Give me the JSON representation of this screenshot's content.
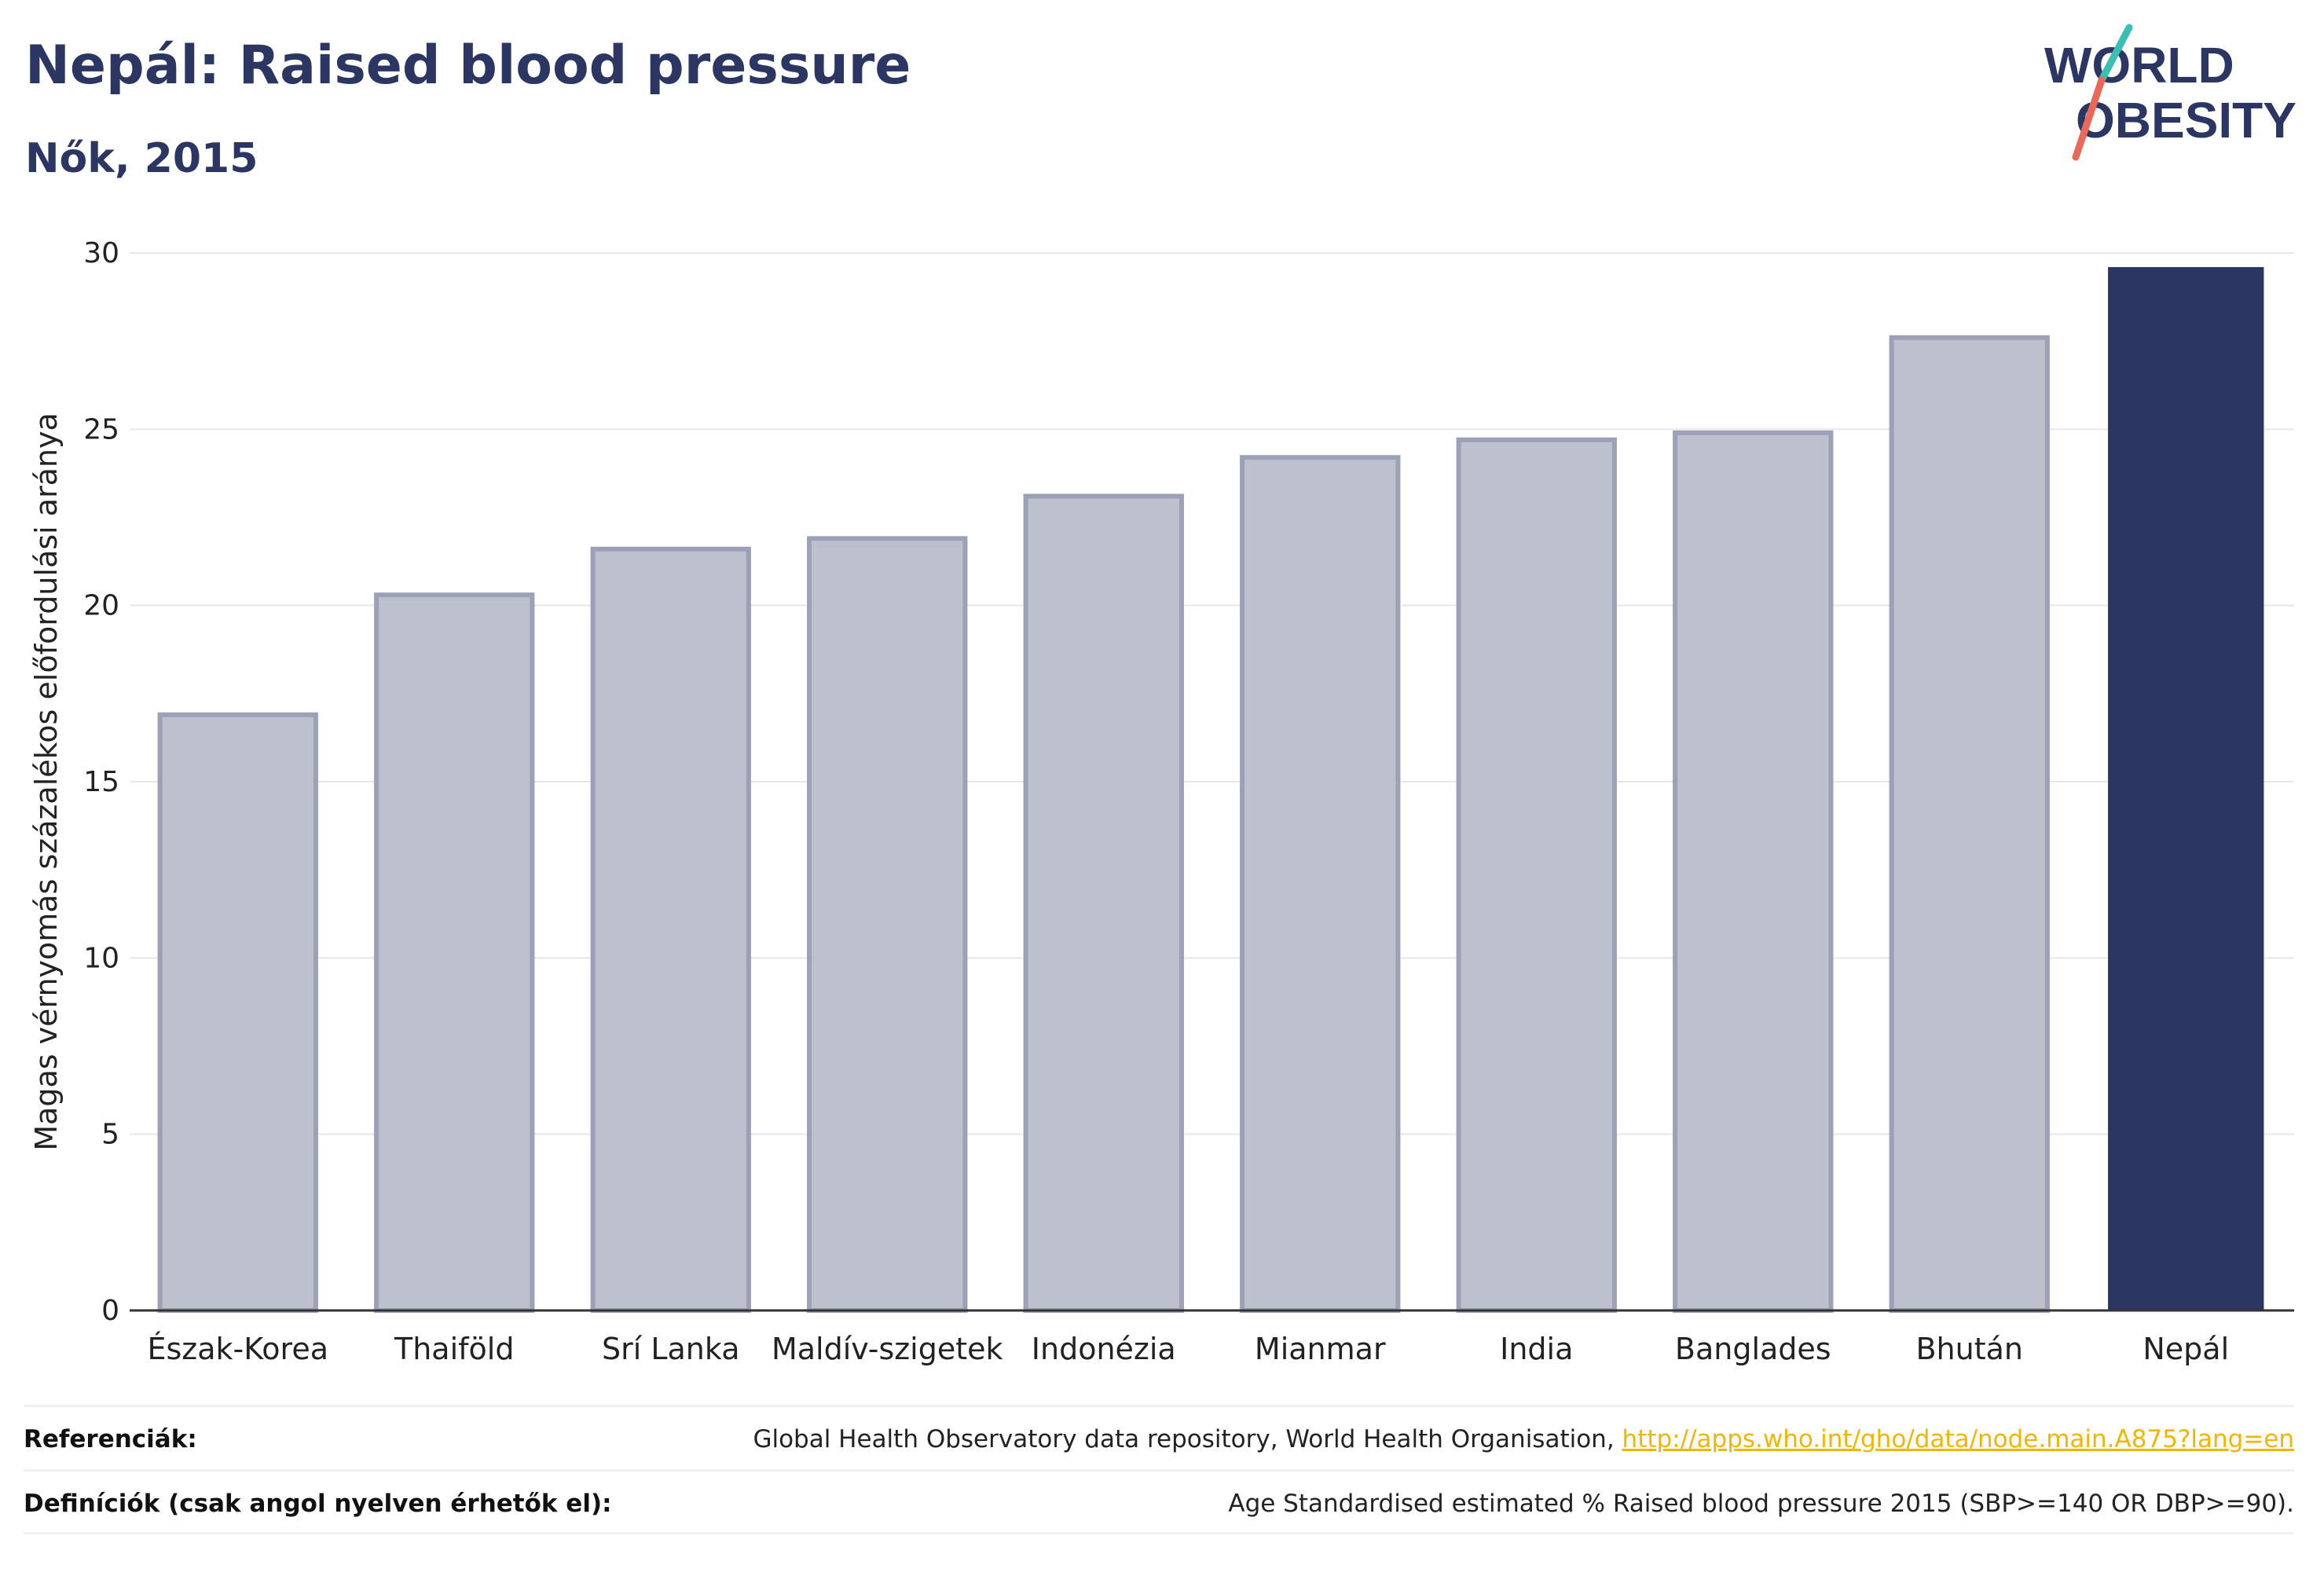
{
  "header": {
    "title": "Nepál: Raised blood pressure",
    "subtitle": "Nők, 2015"
  },
  "logo": {
    "line1": "WORLD",
    "line2": "OBESITY"
  },
  "colors": {
    "highlight_bar": "#2b3663",
    "muted_bar_fill": "#bdc0cd",
    "muted_bar_stroke": "#9ca1b8",
    "text": "#2a3560",
    "link": "#f2b600"
  },
  "chart_data": {
    "type": "bar",
    "title": "Nepál: Raised blood pressure",
    "subtitle": "Nők, 2015",
    "xlabel": "",
    "ylabel": "Magas vérnyomás százalékos előfordulási aránya",
    "ylim": [
      0,
      30
    ],
    "yticks": [
      0,
      5,
      10,
      15,
      20,
      25,
      30
    ],
    "grid": true,
    "categories": [
      "Észak-Korea",
      "Thaiföld",
      "Srí Lanka",
      "Maldív-szigetek",
      "Indonézia",
      "Mianmar",
      "India",
      "Banglades",
      "Bhután",
      "Nepál"
    ],
    "values": [
      16.9,
      20.3,
      21.6,
      21.9,
      23.1,
      24.2,
      24.7,
      24.9,
      27.6,
      29.6
    ],
    "highlight": "Nepál"
  },
  "footer": {
    "references_label": "Referenciák:",
    "references_text": "Global Health Observatory data repository, World Health Organisation, ",
    "references_link": "http://apps.who.int/gho/data/node.main.A875?lang=en",
    "definitions_label": "Definíciók (csak angol nyelven érhetők el):",
    "definitions_text": "Age Standardised estimated % Raised blood pressure 2015 (SBP>=140 OR DBP>=90)."
  }
}
